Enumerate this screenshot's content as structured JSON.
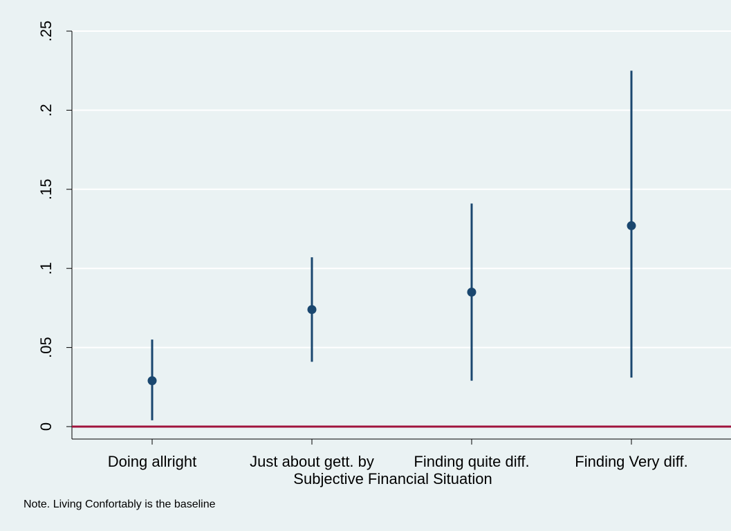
{
  "chart_data": {
    "type": "scatter",
    "subtype": "coefficient plot with confidence intervals",
    "xlabel": "Subjective Financial Situation",
    "ylabel": "",
    "note": "Note. Living Confortably is the baseline",
    "categories": [
      "Doing allright",
      "Just about gett. by",
      "Finding quite diff.",
      "Finding Very diff."
    ],
    "points": [
      {
        "category": "Doing allright",
        "estimate": 0.029,
        "ci_low": 0.004,
        "ci_high": 0.055
      },
      {
        "category": "Just about gett. by",
        "estimate": 0.074,
        "ci_low": 0.041,
        "ci_high": 0.107
      },
      {
        "category": "Finding quite diff.",
        "estimate": 0.085,
        "ci_low": 0.029,
        "ci_high": 0.141
      },
      {
        "category": "Finding Very diff.",
        "estimate": 0.127,
        "ci_low": 0.031,
        "ci_high": 0.225
      }
    ],
    "yticks": [
      0,
      0.05,
      0.1,
      0.15,
      0.2,
      0.25
    ],
    "ytick_labels": [
      "0",
      ".05",
      ".1",
      ".15",
      ".2",
      ".25"
    ],
    "ylim": [
      0,
      0.25
    ],
    "reference_line": {
      "y": 0,
      "color": "#a0143c"
    },
    "marker_color": "#1a476f",
    "grid": true,
    "legend": "none"
  }
}
